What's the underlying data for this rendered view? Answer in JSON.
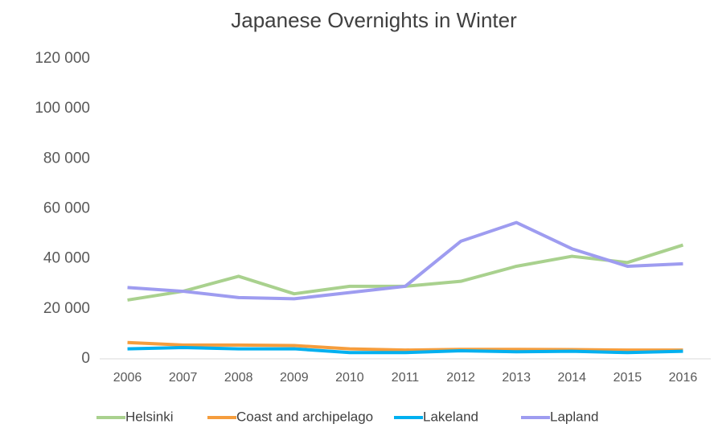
{
  "chart_data": {
    "type": "line",
    "title": "Japanese Overnights in Winter",
    "categories": [
      "2006",
      "2007",
      "2008",
      "2009",
      "2010",
      "2011",
      "2012",
      "2013",
      "2014",
      "2015",
      "2016"
    ],
    "series": [
      {
        "name": "Helsinki",
        "color": "#a9d18e",
        "values": [
          23500,
          27000,
          33000,
          26000,
          29000,
          29000,
          31000,
          37000,
          41000,
          38500,
          45500
        ]
      },
      {
        "name": "Coast and archipelago",
        "color": "#f59d3d",
        "values": [
          6500,
          5500,
          5500,
          5300,
          4000,
          3500,
          3800,
          3800,
          3700,
          3500,
          3500
        ]
      },
      {
        "name": "Lakeland",
        "color": "#00b0f0",
        "values": [
          4000,
          4500,
          4000,
          4000,
          2500,
          2500,
          3200,
          2800,
          3000,
          2500,
          3000
        ]
      },
      {
        "name": "Lapland",
        "color": "#9e9cf0",
        "values": [
          28500,
          27000,
          24500,
          24000,
          26500,
          29000,
          47000,
          54500,
          44000,
          37000,
          38000
        ]
      }
    ],
    "ylim": [
      0,
      120000
    ],
    "yticks": [
      0,
      {
        "value": 20000,
        "label": "20 000"
      },
      {
        "value": 40000,
        "label": "40 000"
      },
      {
        "value": 60000,
        "label": "60 000"
      },
      {
        "value": 80000,
        "label": "80 000"
      },
      {
        "value": 100000,
        "label": "100 000"
      },
      {
        "value": 120000,
        "label": "120 000"
      }
    ],
    "grid": false,
    "legend": "bottom"
  }
}
